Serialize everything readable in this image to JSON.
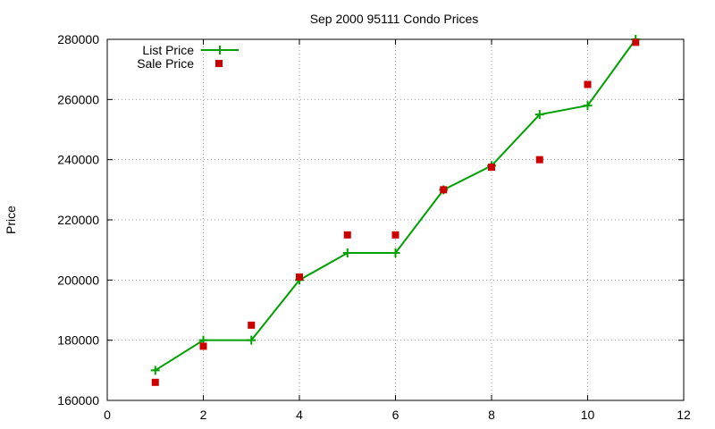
{
  "chart_data": {
    "type": "line",
    "title": "Sep 2000 95111 Condo Prices",
    "xlabel": "",
    "ylabel": "Price",
    "xlim": [
      0,
      12
    ],
    "ylim": [
      160000,
      280000
    ],
    "xticks": [
      "0",
      "2",
      "4",
      "6",
      "8",
      "10",
      "12"
    ],
    "yticks": [
      "160000",
      "180000",
      "200000",
      "220000",
      "240000",
      "260000",
      "280000"
    ],
    "grid": true,
    "legend_position": "top-left",
    "series": [
      {
        "name": "List Price",
        "style": "line-with-plus-markers",
        "color": "#00a000",
        "x": [
          1,
          2,
          3,
          4,
          5,
          6,
          7,
          8,
          9,
          10,
          11
        ],
        "y": [
          170000,
          180000,
          180000,
          200000,
          209000,
          209000,
          230000,
          238000,
          255000,
          258000,
          280000
        ]
      },
      {
        "name": "Sale Price",
        "style": "square-markers",
        "color": "#cc0000",
        "x": [
          1,
          2,
          3,
          4,
          5,
          6,
          7,
          8,
          9,
          10,
          11
        ],
        "y": [
          166000,
          178000,
          185000,
          201000,
          215000,
          215000,
          230000,
          237500,
          240000,
          265000,
          279000
        ]
      }
    ]
  }
}
